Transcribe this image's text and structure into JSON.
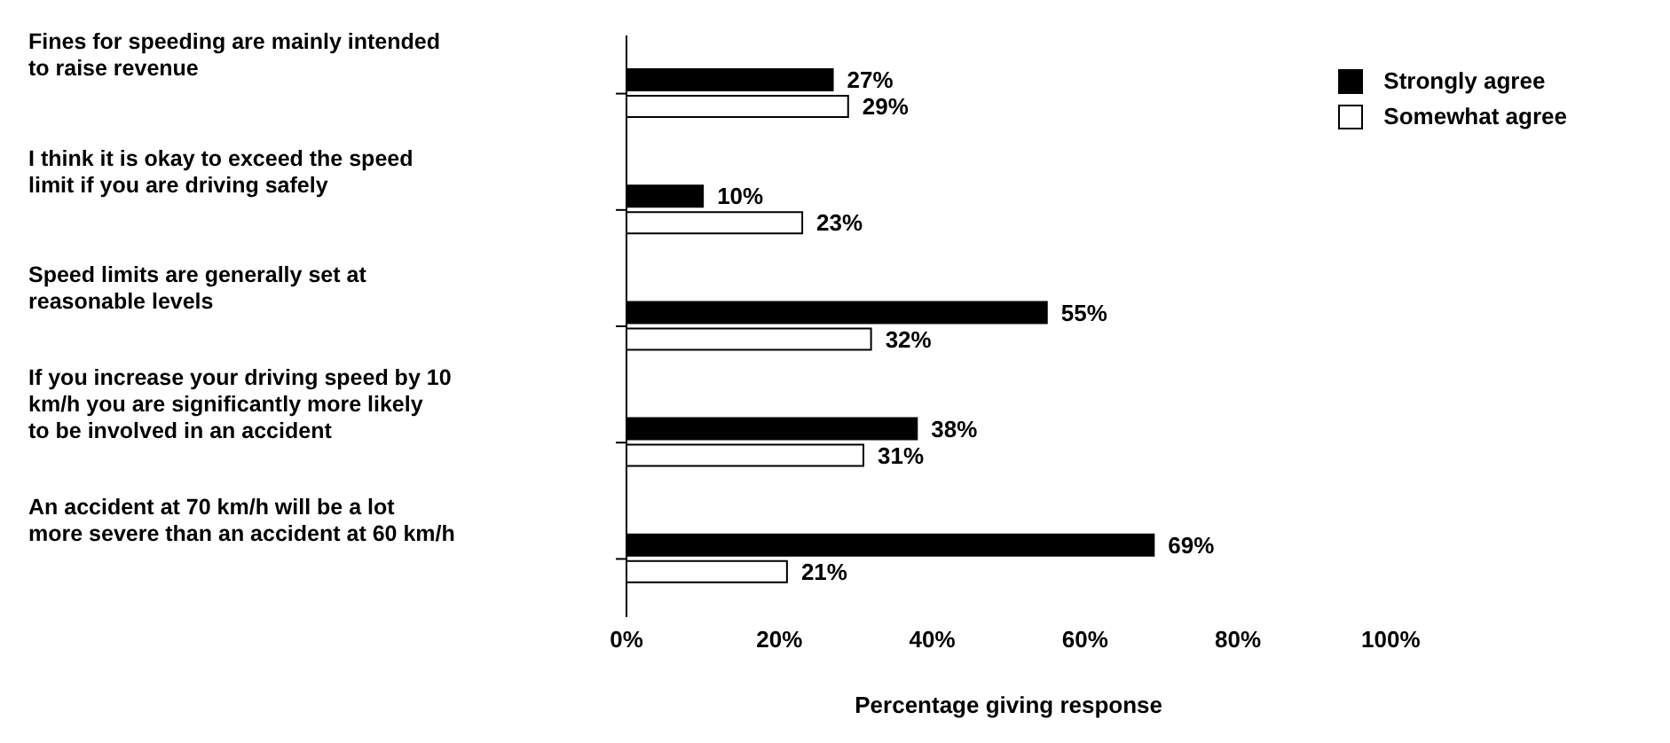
{
  "chart_data": {
    "type": "bar",
    "orientation": "horizontal",
    "xlabel": "Percentage giving response",
    "categories": [
      "Fines for speeding are mainly intended to raise revenue",
      "I think it is okay to exceed the speed limit if you are driving safely",
      "Speed limits are generally set at reasonable levels",
      "If you increase your driving speed by 10 km/h you are significantly more likely to be involved in an accident",
      "An accident at 70 km/h will be a lot more severe than an accident at 60 km/h"
    ],
    "series": [
      {
        "name": "Strongly agree",
        "color": "#000000",
        "values": [
          27,
          10,
          55,
          38,
          69
        ],
        "value_labels": [
          "27%",
          "10%",
          "55%",
          "38%",
          "69%"
        ]
      },
      {
        "name": "Somewhat agree",
        "color": "#ffffff",
        "values": [
          29,
          23,
          32,
          31,
          21
        ],
        "value_labels": [
          "29%",
          "23%",
          "32%",
          "31%",
          "21%"
        ]
      }
    ],
    "xlim": [
      0,
      100
    ],
    "xticks": [
      {
        "value": 0,
        "label": "0%"
      },
      {
        "value": 20,
        "label": "20%"
      },
      {
        "value": 40,
        "label": "40%"
      },
      {
        "value": 60,
        "label": "60%"
      },
      {
        "value": 80,
        "label": "80%"
      },
      {
        "value": 100,
        "label": "100%"
      }
    ],
    "grid": false,
    "legend": "top right"
  }
}
